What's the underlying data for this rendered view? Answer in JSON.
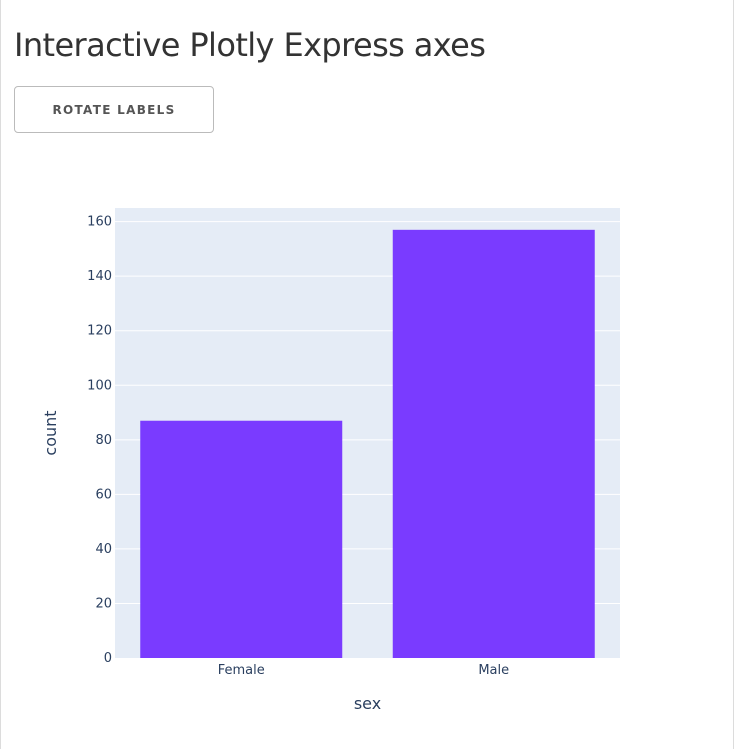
{
  "page": {
    "title": "Interactive Plotly Express axes",
    "rotate_button_label": "ROTATE LABELS"
  },
  "colors": {
    "bar": "#7a3bff",
    "plot_bg": "#e5ecf6",
    "grid": "#ffffff",
    "tick_text": "#2a3f5f",
    "axis_title": "#2a3f5f"
  },
  "chart_data": {
    "type": "bar",
    "categories": [
      "Female",
      "Male"
    ],
    "values": [
      87,
      157
    ],
    "title": "",
    "xlabel": "sex",
    "ylabel": "count",
    "ylim": [
      0,
      165
    ],
    "yticks": [
      0,
      20,
      40,
      60,
      80,
      100,
      120,
      140,
      160
    ],
    "grid": true,
    "legend": "none"
  }
}
